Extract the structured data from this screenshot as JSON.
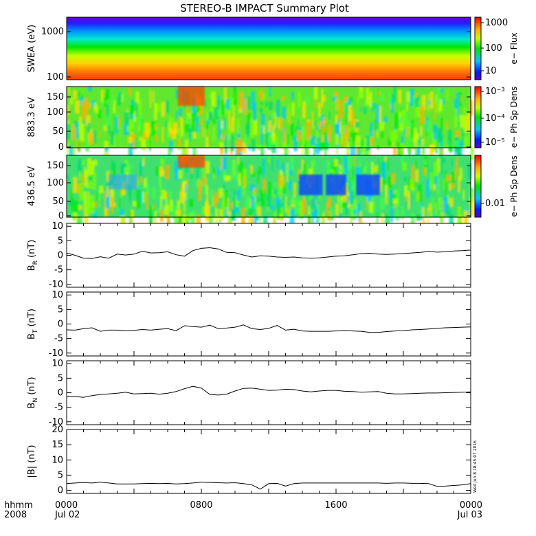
{
  "chart_data": {
    "type": "line",
    "title": "STEREO-B IMPACT Summary Plot",
    "x_axis": {
      "corner_top": "hhmm",
      "corner_bottom": "2008",
      "ticks": [
        {
          "top": "0000",
          "bottom": "Jul 02"
        },
        {
          "top": "0800",
          "bottom": ""
        },
        {
          "top": "1600",
          "bottom": ""
        },
        {
          "top": "0000",
          "bottom": "Jul 03"
        }
      ],
      "range_hours": [
        0,
        24
      ]
    },
    "timestamp": "Wed Jun  8 18:45:07 2016",
    "spectrograms": [
      {
        "ylabel": "SWEA (eV)",
        "ylim": [
          95,
          2100
        ],
        "yscale": "log",
        "yticks": [
          "1000",
          "100"
        ],
        "colorbar_label": "e− Flux",
        "colorbar_ticks": [
          "1000",
          "100",
          "10"
        ]
      },
      {
        "ylabel": "883.3 eV",
        "ylim": [
          -5,
          175
        ],
        "yticks": [
          "150",
          "100",
          "50",
          "0"
        ],
        "colorbar_label": "e− Ph Sp Dens",
        "colorbar_ticks": [
          "10⁻³",
          "10⁻⁴",
          "10⁻⁵"
        ]
      },
      {
        "ylabel": "436.5 eV",
        "ylim": [
          -5,
          175
        ],
        "yticks": [
          "150",
          "100",
          "50",
          "0"
        ],
        "colorbar_label": "e− Ph Sp Dens",
        "colorbar_ticks": [
          "0.01"
        ]
      }
    ],
    "series": [
      {
        "name": "BR",
        "ylabel": "B_R (nT)",
        "ylim": [
          -11,
          11
        ],
        "yticks": [
          "10",
          "5",
          "0",
          "-5",
          "-10"
        ],
        "x": [
          0,
          0.5,
          1,
          1.5,
          2,
          2.5,
          3,
          3.5,
          4,
          4.5,
          5,
          5.5,
          6,
          6.5,
          7,
          7.5,
          8,
          8.5,
          9,
          9.5,
          10,
          10.5,
          11,
          11.5,
          12,
          12.5,
          13,
          13.5,
          14,
          14.5,
          15,
          15.5,
          16,
          16.5,
          17,
          17.5,
          18,
          18.5,
          19,
          19.5,
          20,
          20.5,
          21,
          21.5,
          22,
          22.5,
          23,
          23.5,
          24
        ],
        "values": [
          0.8,
          0,
          -1,
          -1.1,
          -0.5,
          -1,
          0.4,
          0.1,
          0.4,
          1.4,
          0.8,
          0.9,
          1.2,
          0.2,
          -0.3,
          1.6,
          2.4,
          2.6,
          2.2,
          1,
          0.9,
          0.1,
          -0.6,
          -0.2,
          -0.3,
          -0.6,
          -0.7,
          -0.6,
          -0.9,
          -1,
          -0.9,
          -0.6,
          -0.3,
          -0.2,
          0.2,
          0.6,
          0.7,
          0.4,
          0.3,
          0.4,
          0.6,
          0.8,
          1,
          1.3,
          1.1,
          1.2,
          1.5,
          1.6,
          1.8
        ]
      },
      {
        "name": "BT",
        "ylabel": "B_T (nT)",
        "ylim": [
          -11,
          11
        ],
        "yticks": [
          "10",
          "5",
          "0",
          "-5",
          "-10"
        ],
        "x": [
          0,
          0.5,
          1,
          1.5,
          2,
          2.5,
          3,
          3.5,
          4,
          4.5,
          5,
          5.5,
          6,
          6.5,
          7,
          7.5,
          8,
          8.5,
          9,
          9.5,
          10,
          10.5,
          11,
          11.5,
          12,
          12.5,
          13,
          13.5,
          14,
          14.5,
          15,
          15.5,
          16,
          16.5,
          17,
          17.5,
          18,
          18.5,
          19,
          19.5,
          20,
          20.5,
          21,
          21.5,
          22,
          22.5,
          23,
          23.5,
          24
        ],
        "values": [
          -2,
          -2.1,
          -1.6,
          -1.3,
          -2.5,
          -2.1,
          -2.1,
          -2.3,
          -2.2,
          -1.9,
          -2.1,
          -1.8,
          -1.6,
          -2.3,
          -0.6,
          -0.9,
          -1.1,
          -0.4,
          -1.6,
          -1.4,
          -1.1,
          -0.3,
          -1.6,
          -1.9,
          -1.5,
          -0.5,
          -2.1,
          -1.8,
          -2.4,
          -2.5,
          -2.5,
          -2.5,
          -2.4,
          -2.3,
          -2.4,
          -2.5,
          -2.9,
          -2.9,
          -2.6,
          -2.4,
          -2.3,
          -2,
          -1.9,
          -1.7,
          -1.5,
          -1.3,
          -1.2,
          -1.1,
          -1
        ]
      },
      {
        "name": "BN",
        "ylabel": "B_N (nT)",
        "ylim": [
          -11,
          11
        ],
        "yticks": [
          "10",
          "5",
          "0",
          "-5",
          "-10"
        ],
        "x": [
          0,
          0.5,
          1,
          1.5,
          2,
          2.5,
          3,
          3.5,
          4,
          4.5,
          5,
          5.5,
          6,
          6.5,
          7,
          7.5,
          8,
          8.5,
          9,
          9.5,
          10,
          10.5,
          11,
          11.5,
          12,
          12.5,
          13,
          13.5,
          14,
          14.5,
          15,
          15.5,
          16,
          16.5,
          17,
          17.5,
          18,
          18.5,
          19,
          19.5,
          20,
          20.5,
          21,
          21.5,
          22,
          22.5,
          23,
          23.5,
          24
        ],
        "values": [
          -1.2,
          -1.3,
          -1.6,
          -1,
          -0.6,
          -0.4,
          -0.2,
          0.2,
          -0.4,
          -0.3,
          -0.2,
          -0.5,
          -0.2,
          0.4,
          1.4,
          2.2,
          1.6,
          -0.6,
          -0.8,
          -0.5,
          0.6,
          1.5,
          1.6,
          1.2,
          0.8,
          0.9,
          1.2,
          1.1,
          0.6,
          0.3,
          0.6,
          0.8,
          0.8,
          0.5,
          0.4,
          0.2,
          0.3,
          0.4,
          -0.2,
          -0.4,
          -0.4,
          -0.3,
          -0.2,
          -0.1,
          -0.1,
          0,
          0.1,
          0.2,
          0.3
        ]
      },
      {
        "name": "|B|",
        "ylabel": "|B| (nT)",
        "ylim": [
          -1,
          20
        ],
        "yticks": [
          "20",
          "15",
          "10",
          "5",
          "0"
        ],
        "x": [
          0,
          0.5,
          1,
          1.5,
          2,
          2.5,
          3,
          3.5,
          4,
          4.5,
          5,
          5.5,
          6,
          6.5,
          7,
          7.5,
          8,
          8.5,
          9,
          9.5,
          10,
          10.5,
          11,
          11.5,
          12,
          12.5,
          13,
          13.5,
          14,
          14.5,
          15,
          15.5,
          16,
          16.5,
          17,
          17.5,
          18,
          18.5,
          19,
          19.5,
          20,
          20.5,
          21,
          21.5,
          22,
          22.5,
          23,
          23.5,
          24
        ],
        "values": [
          2.2,
          2.4,
          2.6,
          2.4,
          2.7,
          2.4,
          2.1,
          2.1,
          2.1,
          2.2,
          2.3,
          2.2,
          2.3,
          2.1,
          2.2,
          2.4,
          2.7,
          2.6,
          2.5,
          2.4,
          2.5,
          2.2,
          1.8,
          0.4,
          2.2,
          2.3,
          1.4,
          2.2,
          2.4,
          2.4,
          2.4,
          2.4,
          2.4,
          2.4,
          2.4,
          2.4,
          2.4,
          2.4,
          2.3,
          2.4,
          2.4,
          2.3,
          2.3,
          2.2,
          1.3,
          1.4,
          1.6,
          1.8,
          2.2
        ]
      }
    ]
  },
  "colors": {
    "frame": "#000000",
    "line": "#000000",
    "background": "#ffffff"
  }
}
